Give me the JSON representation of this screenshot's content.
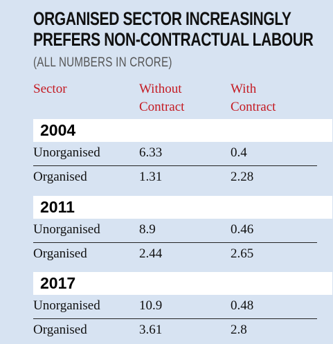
{
  "chart_data": {
    "type": "table",
    "title": "ORGANISED SECTOR INCREASINGLY PREFERS NON-CONTRACTUAL LABOUR",
    "subtitle": "(ALL NUMBERS IN CRORE)",
    "columns": [
      "Sector",
      "Without Contract",
      "With Contract"
    ],
    "column_lines": [
      [
        "Sector"
      ],
      [
        "Without",
        "Contract"
      ],
      [
        "With",
        "Contract"
      ]
    ],
    "groups": [
      {
        "year": "2004",
        "rows": [
          {
            "sector": "Unorganised",
            "without_contract": 6.33,
            "with_contract": 0.4
          },
          {
            "sector": "Organised",
            "without_contract": 1.31,
            "with_contract": 2.28
          }
        ]
      },
      {
        "year": "2011",
        "rows": [
          {
            "sector": "Unorganised",
            "without_contract": 8.9,
            "with_contract": 0.46
          },
          {
            "sector": "Organised",
            "without_contract": 2.44,
            "with_contract": 2.65
          }
        ]
      },
      {
        "year": "2017",
        "rows": [
          {
            "sector": "Unorganised",
            "without_contract": 10.9,
            "with_contract": 0.48
          },
          {
            "sector": "Organised",
            "without_contract": 3.61,
            "with_contract": 2.8
          }
        ]
      }
    ]
  },
  "title_lines": [
    "ORGANISED SECTOR INCREASINGLY",
    "PREFERS NON-CONTRACTUAL LABOUR"
  ],
  "colors": {
    "background": "#d7e3f2",
    "header_text": "#c41a22",
    "year_band": "#ffffff",
    "body_text": "#111111"
  }
}
